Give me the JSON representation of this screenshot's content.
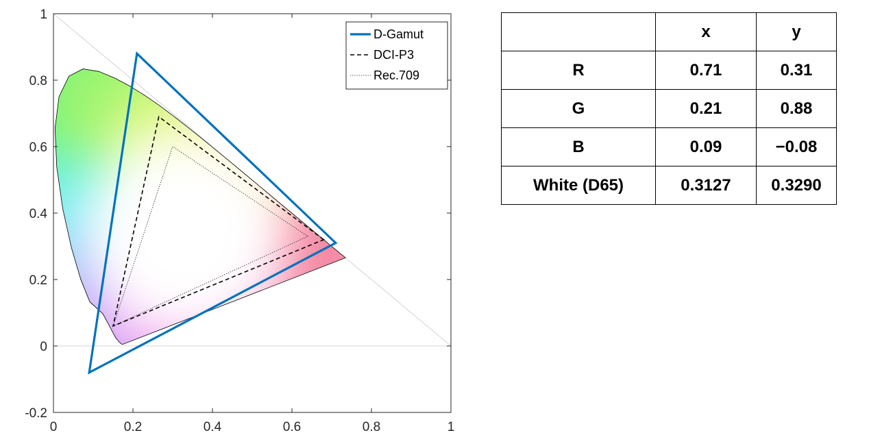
{
  "chart_data": {
    "type": "scatter",
    "title": "",
    "xlabel": "",
    "ylabel": "",
    "xlim": [
      0,
      1
    ],
    "ylim": [
      -0.2,
      1
    ],
    "xticks": [
      0,
      0.2,
      0.4,
      0.6,
      0.8,
      1
    ],
    "yticks": [
      -0.2,
      0,
      0.2,
      0.4,
      0.6,
      0.8,
      1
    ],
    "xtick_labels": [
      "0",
      "0.2",
      "0.4",
      "0.6",
      "0.8",
      "1"
    ],
    "ytick_labels": [
      "-0.2",
      "0",
      "0.2",
      "0.4",
      "0.6",
      "0.8",
      "1"
    ],
    "reference_lines": {
      "zero_line": [
        [
          0,
          0
        ],
        [
          1,
          0
        ]
      ],
      "diagonal": [
        [
          0,
          1
        ],
        [
          1,
          0
        ]
      ]
    },
    "spectral_locus": [
      [
        0.1741,
        0.005
      ],
      [
        0.17,
        0.0065
      ],
      [
        0.1655,
        0.0116
      ],
      [
        0.1566,
        0.0247
      ],
      [
        0.144,
        0.053
      ],
      [
        0.1241,
        0.0971
      ],
      [
        0.0913,
        0.1327
      ],
      [
        0.0687,
        0.2007
      ],
      [
        0.0454,
        0.295
      ],
      [
        0.0235,
        0.4127
      ],
      [
        0.0082,
        0.5384
      ],
      [
        0.0039,
        0.6548
      ],
      [
        0.0139,
        0.7502
      ],
      [
        0.0389,
        0.812
      ],
      [
        0.0743,
        0.8338
      ],
      [
        0.1142,
        0.8262
      ],
      [
        0.1547,
        0.8059
      ],
      [
        0.1929,
        0.7816
      ],
      [
        0.2296,
        0.7543
      ],
      [
        0.2658,
        0.7243
      ],
      [
        0.3016,
        0.6923
      ],
      [
        0.3373,
        0.6589
      ],
      [
        0.3731,
        0.6245
      ],
      [
        0.4087,
        0.5896
      ],
      [
        0.4441,
        0.5547
      ],
      [
        0.4788,
        0.5202
      ],
      [
        0.5125,
        0.4866
      ],
      [
        0.5448,
        0.4544
      ],
      [
        0.5752,
        0.4242
      ],
      [
        0.6029,
        0.3965
      ],
      [
        0.627,
        0.3725
      ],
      [
        0.6482,
        0.3514
      ],
      [
        0.6658,
        0.334
      ],
      [
        0.6801,
        0.3197
      ],
      [
        0.6915,
        0.3083
      ],
      [
        0.7006,
        0.2993
      ],
      [
        0.7079,
        0.292
      ],
      [
        0.714,
        0.2859
      ],
      [
        0.719,
        0.2809
      ],
      [
        0.723,
        0.277
      ],
      [
        0.726,
        0.274
      ],
      [
        0.7283,
        0.2717
      ],
      [
        0.73,
        0.27
      ],
      [
        0.7347,
        0.2653
      ]
    ],
    "series": [
      {
        "name": "D-Gamut",
        "style": "solid",
        "color": "#0072bd",
        "x": [
          0.71,
          0.21,
          0.09
        ],
        "y": [
          0.31,
          0.88,
          -0.08
        ]
      },
      {
        "name": "DCI-P3",
        "style": "dashed",
        "color": "#000000",
        "x": [
          0.68,
          0.265,
          0.15
        ],
        "y": [
          0.32,
          0.69,
          0.06
        ]
      },
      {
        "name": "Rec.709",
        "style": "dotted",
        "color": "#000000",
        "x": [
          0.64,
          0.3,
          0.15
        ],
        "y": [
          0.33,
          0.6,
          0.06
        ]
      }
    ],
    "legend_position": "top-right"
  },
  "table": {
    "header": [
      "",
      "x",
      "y"
    ],
    "rows": [
      [
        "R",
        "0.71",
        "0.31"
      ],
      [
        "G",
        "0.21",
        "0.88"
      ],
      [
        "B",
        "0.09",
        "−0.08"
      ],
      [
        "White (D65)",
        "0.3127",
        "0.3290"
      ]
    ]
  }
}
